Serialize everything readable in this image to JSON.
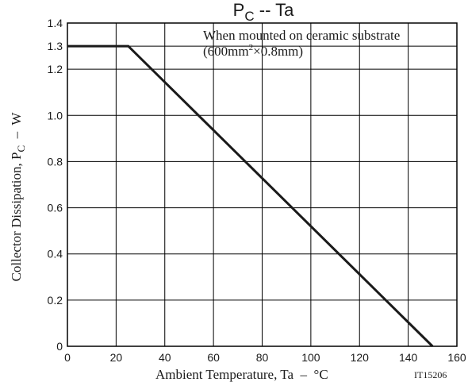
{
  "chart_data": {
    "type": "line",
    "title": {
      "main": "P",
      "sub": "C",
      "rest": " -- Ta"
    },
    "annotation": {
      "line1": "When mounted on ceramic substrate",
      "line2_a": "(600mm",
      "line2_sup": "2",
      "line2_b": "×0.8mm)"
    },
    "xlabel": "Ambient Temperature, Ta  –  °C",
    "ylabel": {
      "main": "Collector Dissipation, P",
      "sub": "C",
      "rest": "  –  W"
    },
    "figure_id": "IT15206",
    "xlim": [
      0,
      160
    ],
    "ylim": [
      0,
      1.4
    ],
    "x_ticks": [
      0,
      20,
      40,
      60,
      80,
      100,
      120,
      140,
      160
    ],
    "x_tick_labels": [
      "0",
      "20",
      "40",
      "60",
      "80",
      "100",
      "120",
      "140",
      "160"
    ],
    "y_ticks": [
      0,
      0.2,
      0.4,
      0.6,
      0.8,
      1.0,
      1.2,
      1.3,
      1.4
    ],
    "y_tick_labels": [
      "0",
      "0.2",
      "0.4",
      "0.6",
      "0.8",
      "1.0",
      "1.2",
      "1.3",
      "1.4"
    ],
    "grid": true,
    "series": [
      {
        "x": [
          0,
          25,
          150
        ],
        "y": [
          1.3,
          1.3,
          0
        ]
      }
    ]
  },
  "colors": {
    "line": "#1a1a1a",
    "grid": "#000000",
    "text": "#1a1a1a"
  }
}
